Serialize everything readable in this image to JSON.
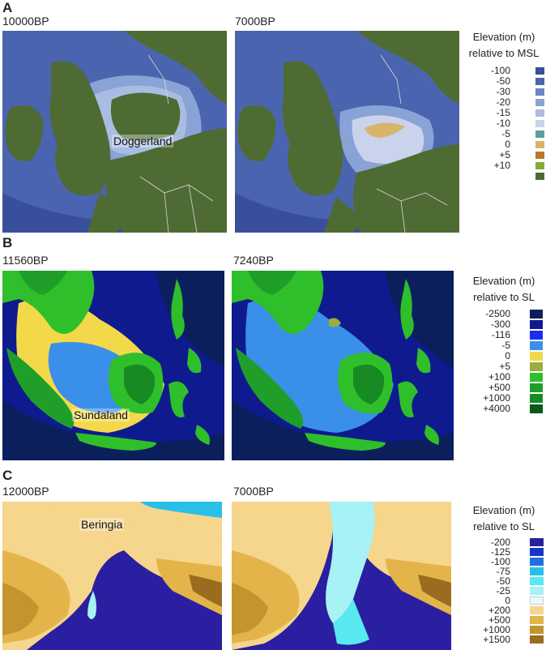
{
  "panels": [
    {
      "letter": "A",
      "left_label": "10000BP",
      "right_label": "7000BP",
      "place_label": "Doggerland",
      "legend_title_line1": "Elevation (m)",
      "legend_title_line2": "relative to MSL",
      "legend": [
        {
          "label": "-100",
          "color": "#3a4f9c"
        },
        {
          "label": "-50",
          "color": "#4b64b0"
        },
        {
          "label": "-30",
          "color": "#6a86c7"
        },
        {
          "label": "-20",
          "color": "#8aa3d6"
        },
        {
          "label": "-15",
          "color": "#a9bce2"
        },
        {
          "label": "-10",
          "color": "#c9d3ec"
        },
        {
          "label": "-5",
          "color": "#5f9ea0"
        },
        {
          "label": "0",
          "color": "#d8b46a"
        },
        {
          "label": "+5",
          "color": "#b9792e"
        },
        {
          "label": "+10",
          "color": "#86ad3a"
        },
        {
          "label": "",
          "color": "#4e6b33"
        }
      ]
    },
    {
      "letter": "B",
      "left_label": "11560BP",
      "right_label": "7240BP",
      "place_label": "Sundaland",
      "legend_title_line1": "Elevation (m)",
      "legend_title_line2": "relative to SL",
      "legend": [
        {
          "label": "-2500",
          "color": "#0a1f5c"
        },
        {
          "label": "-300",
          "color": "#0e1a8e"
        },
        {
          "label": "-116",
          "color": "#1d2cf0"
        },
        {
          "label": "-5",
          "color": "#3a8fe8"
        },
        {
          "label": "0",
          "color": "#f3d84a"
        },
        {
          "label": "+5",
          "color": "#9aae3c"
        },
        {
          "label": "+100",
          "color": "#2fbf2a"
        },
        {
          "label": "+500",
          "color": "#1f9e2a"
        },
        {
          "label": "+1000",
          "color": "#178a24"
        },
        {
          "label": "+4000",
          "color": "#0c5a18"
        }
      ]
    },
    {
      "letter": "C",
      "left_label": "12000BP",
      "right_label": "7000BP",
      "place_label": "Beringia",
      "legend_title_line1": "Elevation (m)",
      "legend_title_line2": "relative to SL",
      "legend": [
        {
          "label": "-200",
          "color": "#2a1fa0"
        },
        {
          "label": "-125",
          "color": "#1436c8"
        },
        {
          "label": "-100",
          "color": "#1f6fe0"
        },
        {
          "label": "-75",
          "color": "#28c0e8"
        },
        {
          "label": "-50",
          "color": "#57e8f0"
        },
        {
          "label": "-25",
          "color": "#a6f2f5"
        },
        {
          "label": "0",
          "color": "#e9fbfb"
        },
        {
          "label": "+200",
          "color": "#f6d58c"
        },
        {
          "label": "+500",
          "color": "#e2b44a"
        },
        {
          "label": "+1000",
          "color": "#c4942e"
        },
        {
          "label": "+1500",
          "color": "#9a6c20"
        }
      ]
    }
  ]
}
